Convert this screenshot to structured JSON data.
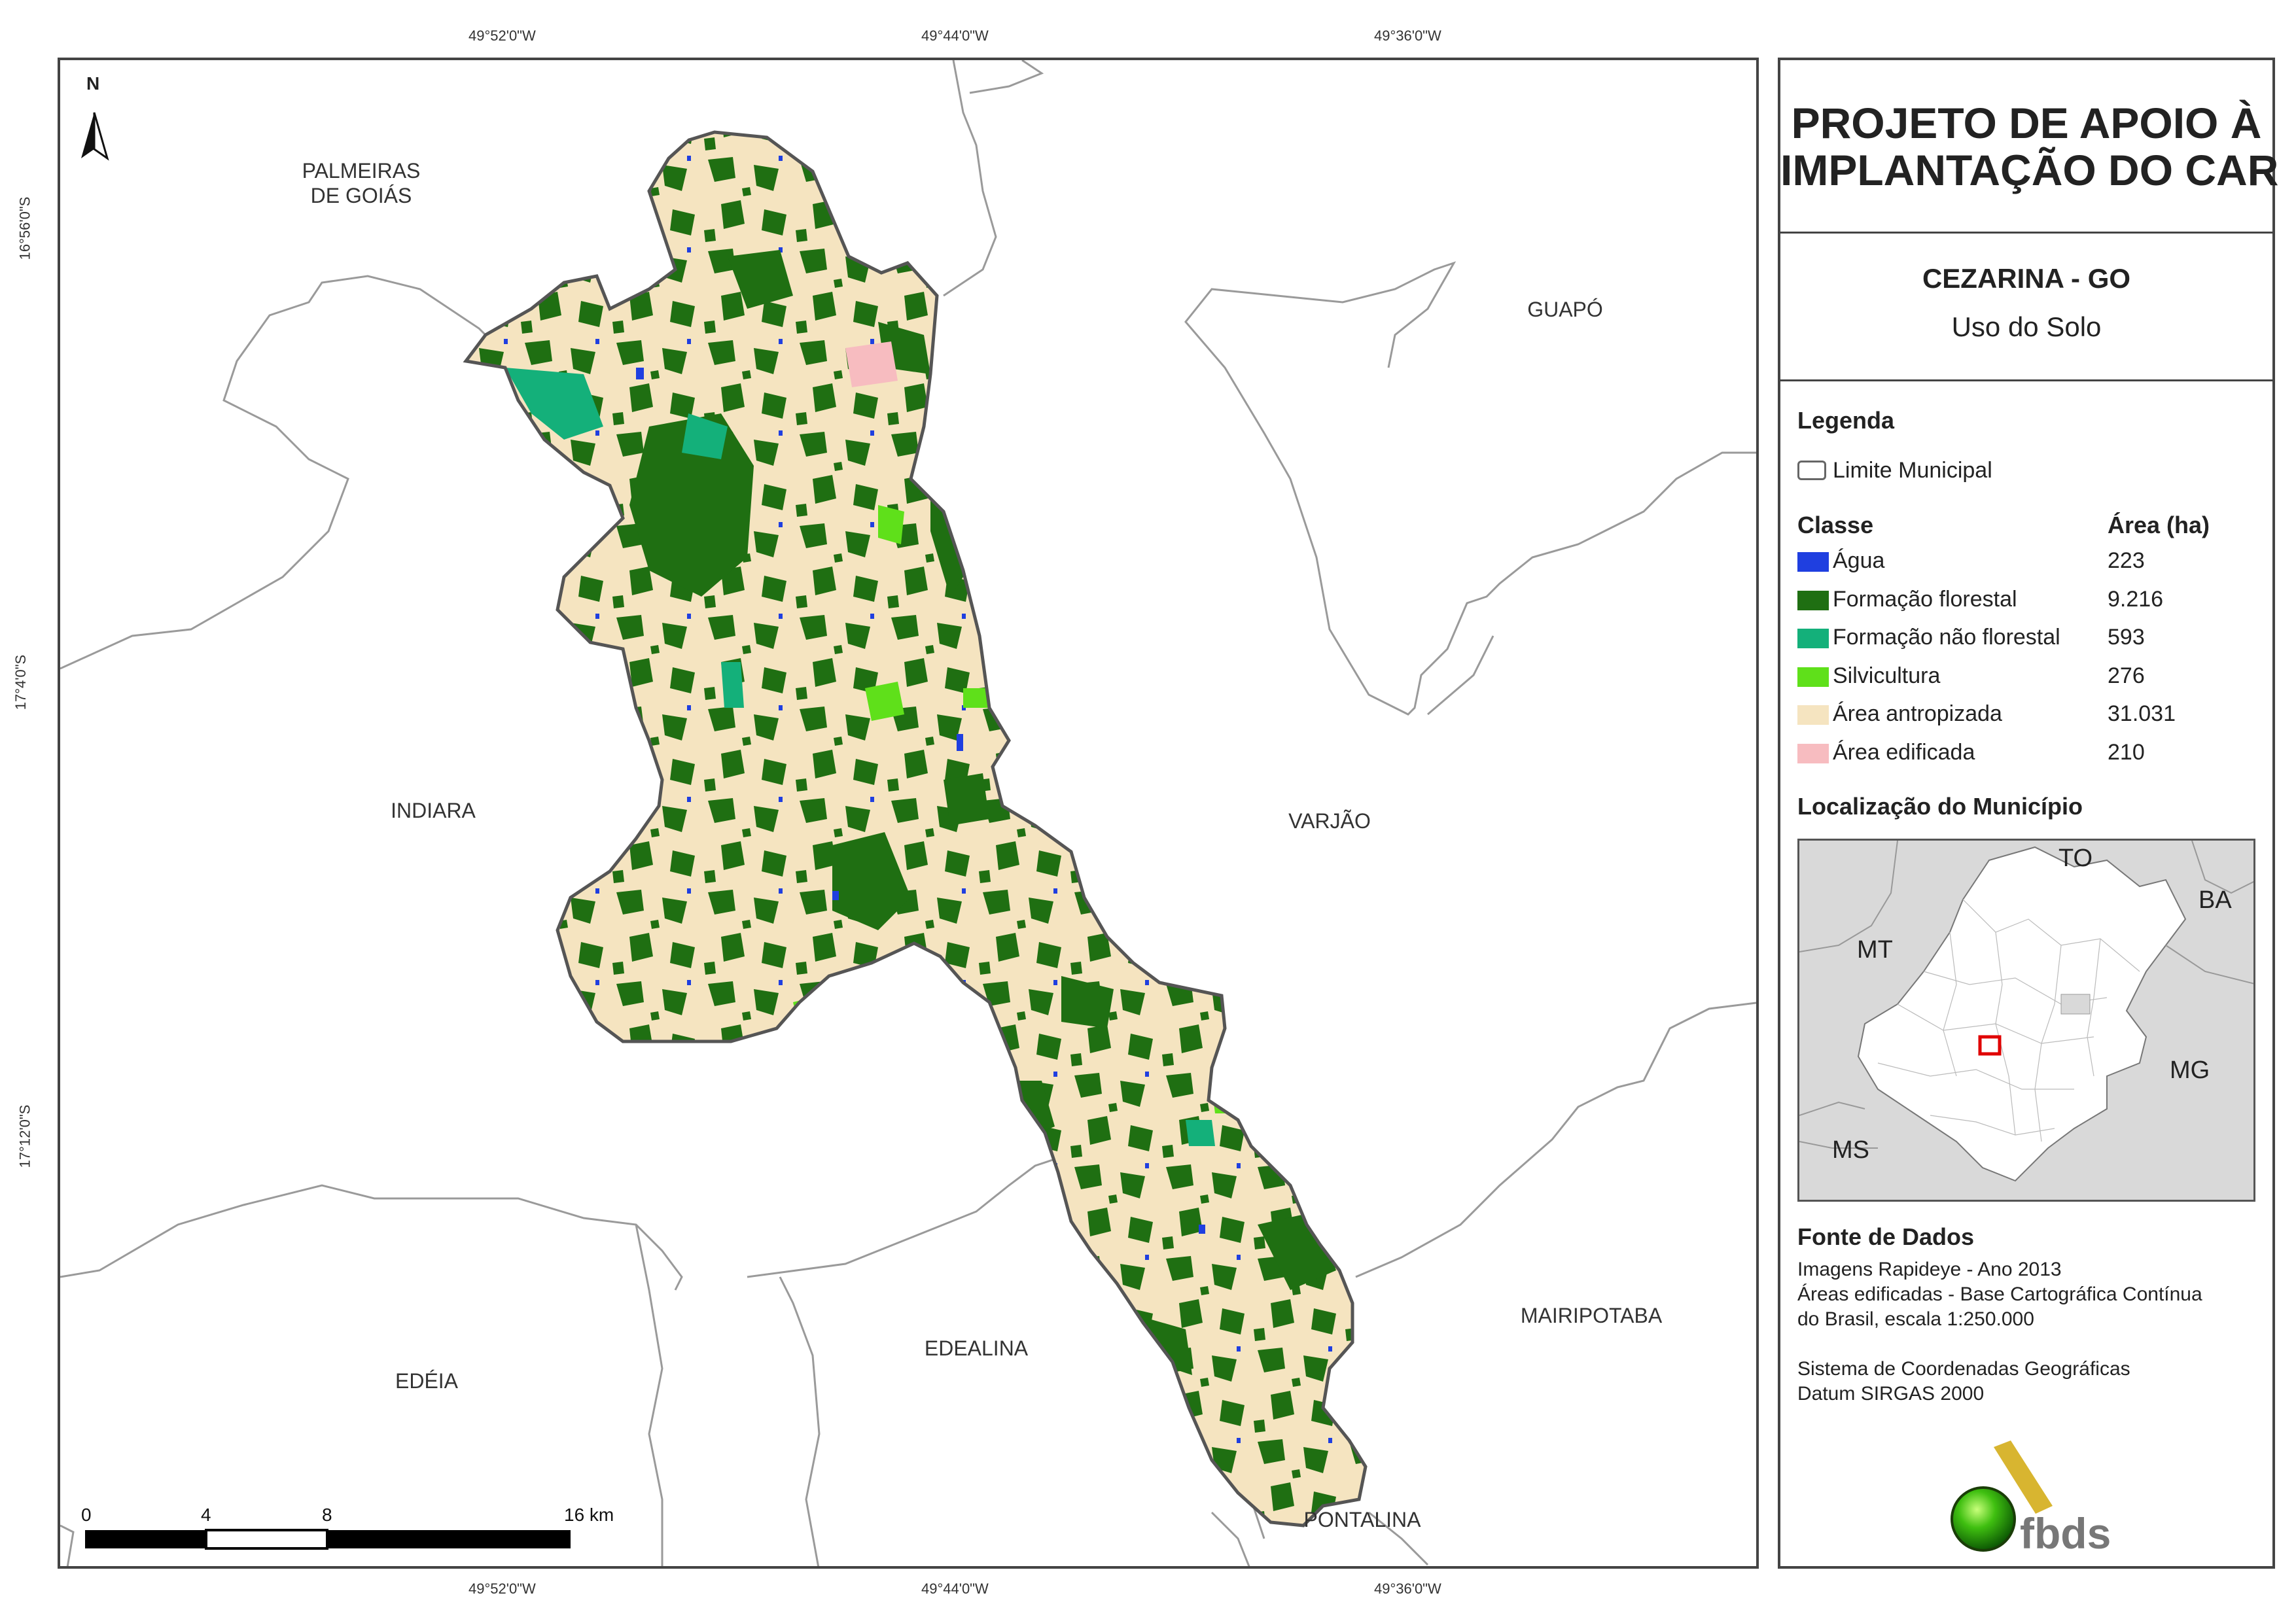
{
  "coordinates": {
    "top": [
      "49°52'0\"W",
      "49°44'0\"W",
      "49°36'0\"W"
    ],
    "bottom": [
      "49°52'0\"W",
      "49°44'0\"W",
      "49°36'0\"W"
    ],
    "left": [
      "16°56'0\"S",
      "17°4'0\"S",
      "17°12'0\"S"
    ]
  },
  "north": "N",
  "municipalities": {
    "palmeiras": "PALMEIRAS\nDE GOIÁS",
    "guapo": "GUAPÓ",
    "indiara": "INDIARA",
    "varjao": "VARJÃO",
    "edeia": "EDÉIA",
    "edealina": "EDEALINA",
    "mairipotaba": "MAIRIPOTABA",
    "pontalina": "PONTALINA"
  },
  "scale_bar": {
    "labels": [
      "0",
      "4",
      "8",
      "16 km"
    ]
  },
  "panel": {
    "title_line1": "PROJETO DE APOIO À",
    "title_line2": "IMPLANTAÇÃO DO CAR",
    "municipality": "CEZARINA - GO",
    "subject": "Uso do Solo",
    "legend_title": "Legenda",
    "limit_label": "Limite Municipal",
    "class_header": "Classe",
    "area_header": "Área (ha)",
    "classes": [
      {
        "name": "Água",
        "area": "223",
        "color": "#1f3fe0"
      },
      {
        "name": "Formação florestal",
        "area": "9.216",
        "color": "#1f6f12"
      },
      {
        "name": "Formação não florestal",
        "area": "593",
        "color": "#14b07a"
      },
      {
        "name": "Silvicultura",
        "area": "276",
        "color": "#5fe01a"
      },
      {
        "name": "Área antropizada",
        "area": "31.031",
        "color": "#f5e4c0"
      },
      {
        "name": "Área edificada",
        "area": "210",
        "color": "#f7bcc0"
      }
    ],
    "location_title": "Localização do Município",
    "inset_labels": {
      "to": "TO",
      "ba": "BA",
      "mt": "MT",
      "mg": "MG",
      "ms": "MS"
    },
    "source_title": "Fonte de Dados",
    "source_lines": [
      "Imagens Rapideye - Ano 2013",
      "Áreas edificadas - Base Cartográfica Contínua",
      "do Brasil, escala 1:250.000",
      "",
      "Sistema de Coordenadas Geográficas",
      "Datum SIRGAS 2000"
    ],
    "logo_text": "fbds"
  }
}
